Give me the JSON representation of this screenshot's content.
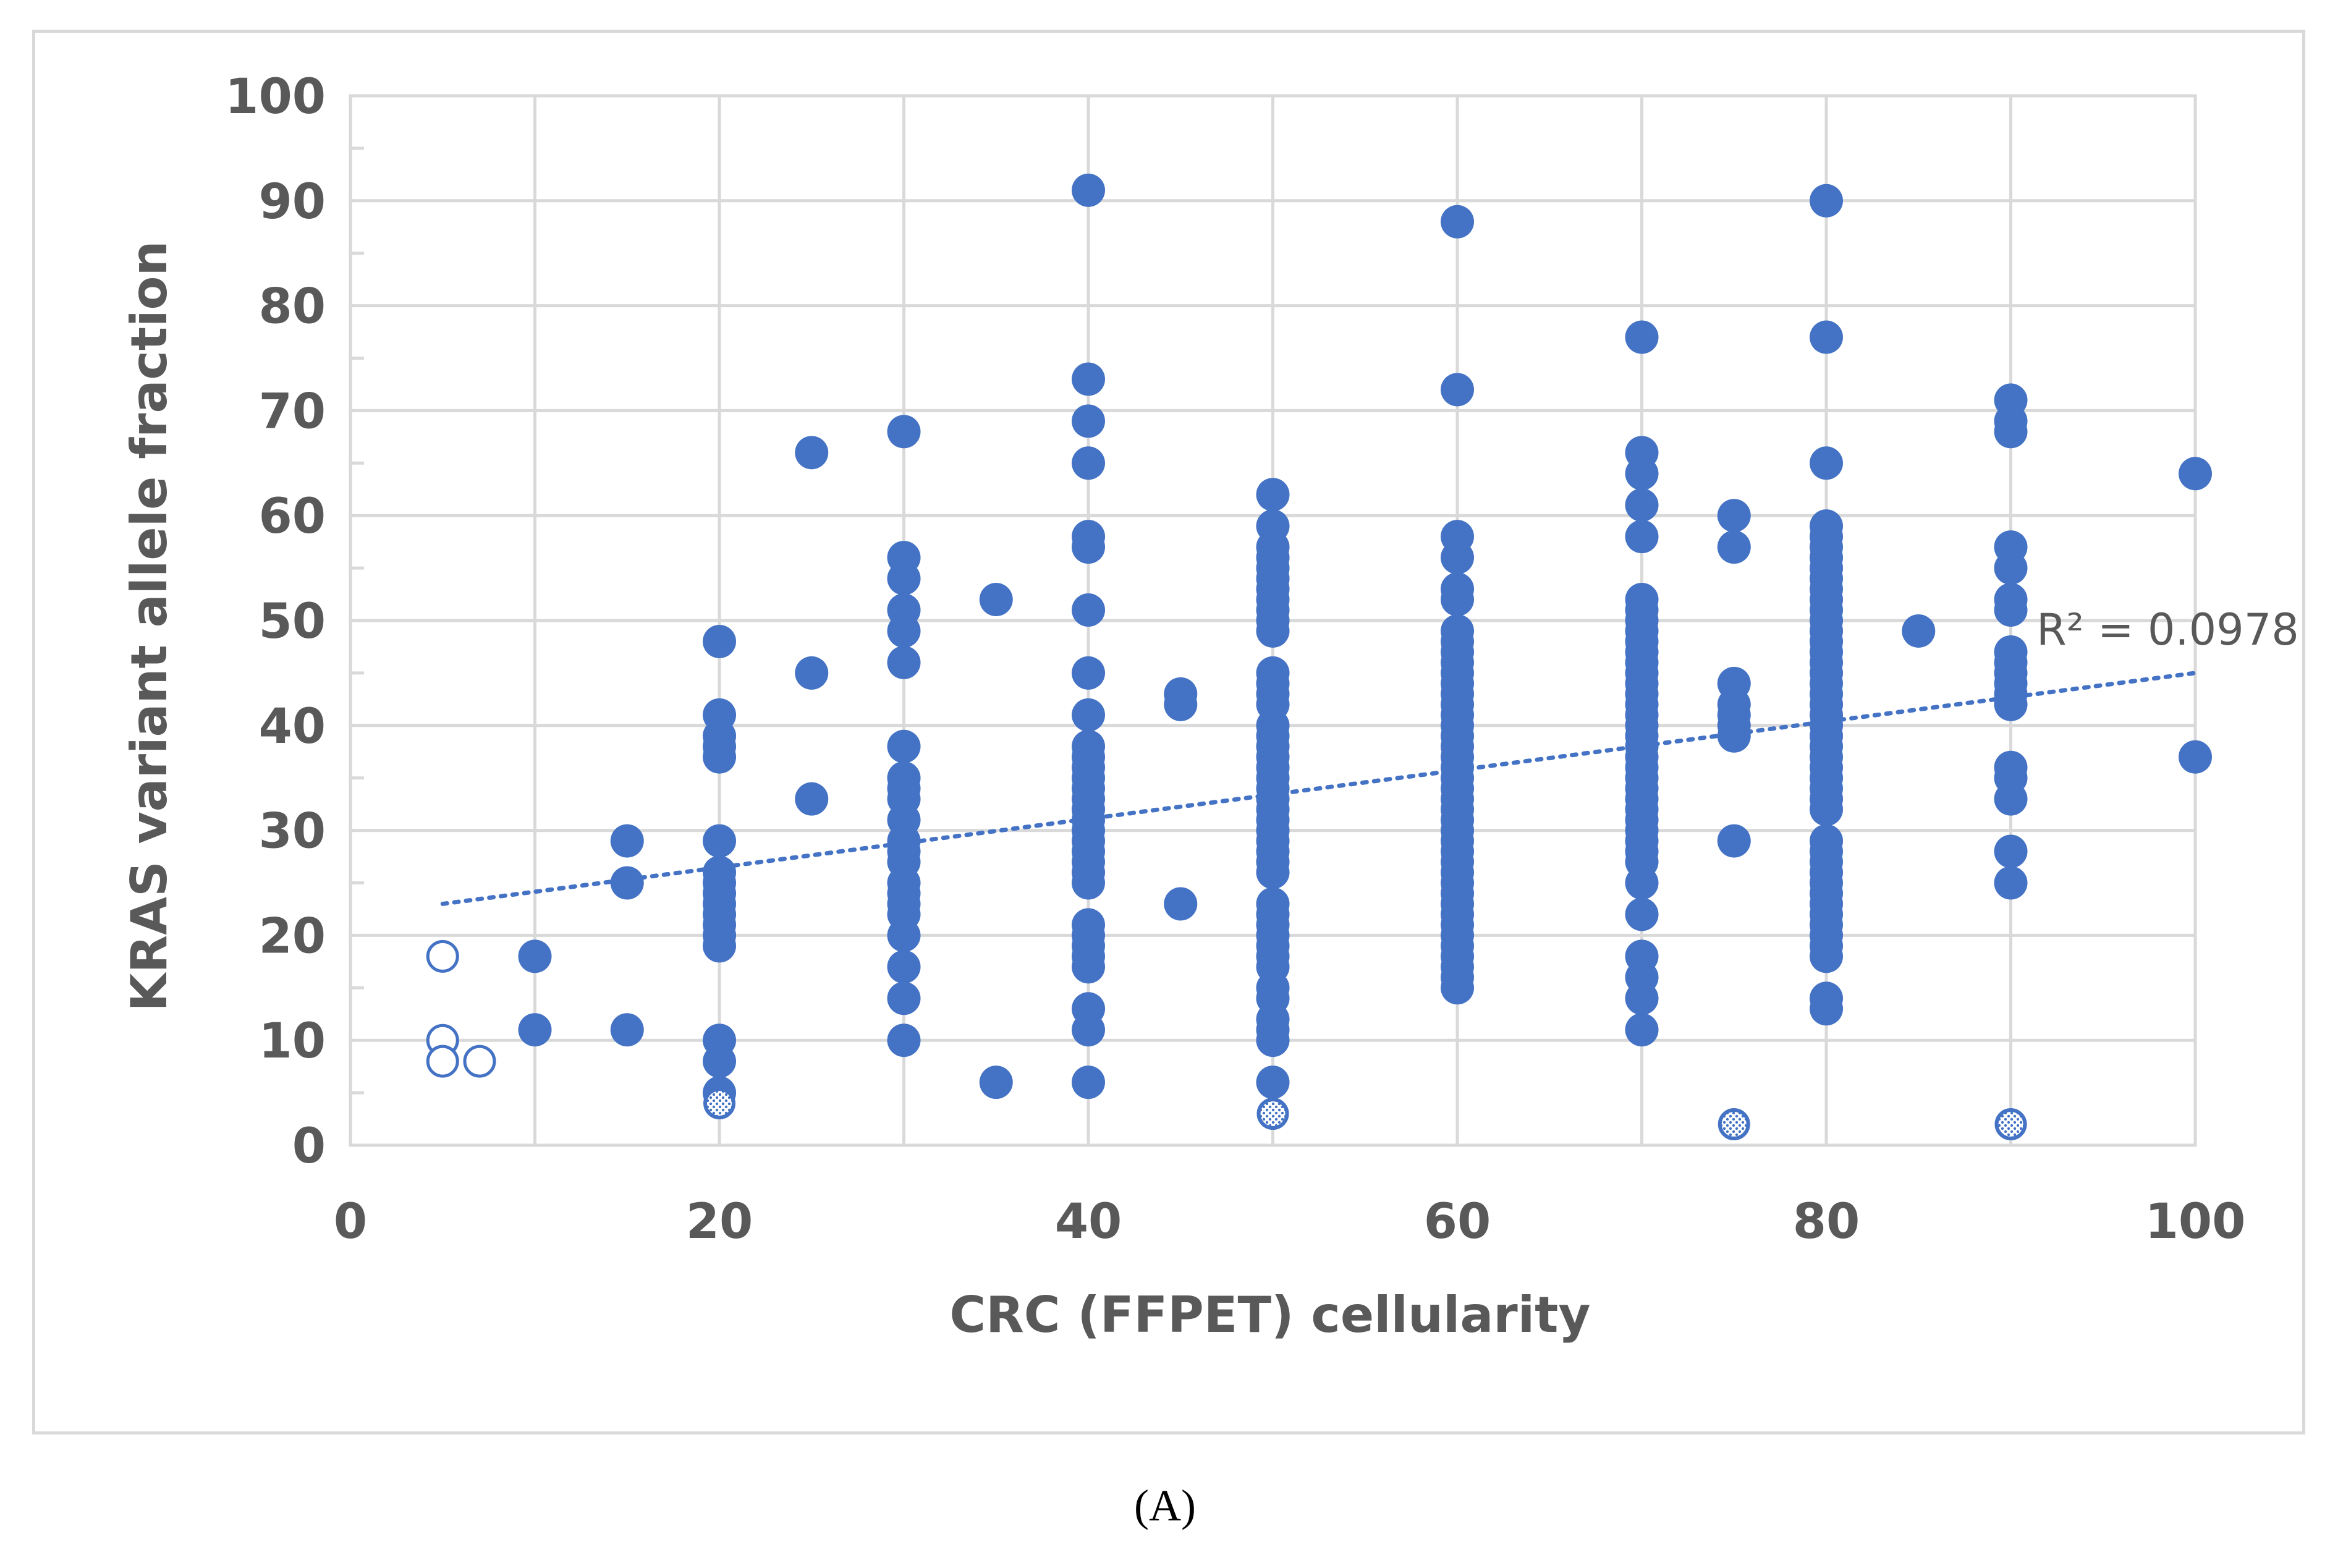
{
  "chart_data": {
    "type": "scatter",
    "title": "",
    "xlabel": "CRC (FFPET) cellularity",
    "ylabel": "KRAS variant allele fraction",
    "xlim": [
      0,
      100
    ],
    "ylim": [
      0,
      100
    ],
    "x_ticks": [
      "0",
      "20",
      "40",
      "60",
      "80",
      "100"
    ],
    "y_ticks": [
      "0",
      "10",
      "20",
      "30",
      "40",
      "50",
      "60",
      "70",
      "80",
      "90",
      "100"
    ],
    "grid": true,
    "colors": {
      "marker": "#4472c4",
      "grid": "#d9d9d9",
      "text": "#595959"
    },
    "trendline": {
      "type": "linear",
      "style": "dotted",
      "x": [
        5,
        100
      ],
      "y": [
        23,
        45
      ],
      "r2_label": "R² = 0.0978"
    },
    "series": [
      {
        "name": "filled",
        "style": "filled",
        "points": [
          [
            10,
            18
          ],
          [
            10,
            11
          ],
          [
            15,
            29
          ],
          [
            15,
            25
          ],
          [
            15,
            11
          ],
          [
            20,
            48
          ],
          [
            20,
            41
          ],
          [
            20,
            39
          ],
          [
            20,
            38
          ],
          [
            20,
            37
          ],
          [
            20,
            29
          ],
          [
            20,
            26
          ],
          [
            20,
            25
          ],
          [
            20,
            24
          ],
          [
            20,
            23
          ],
          [
            20,
            22
          ],
          [
            20,
            21
          ],
          [
            20,
            20
          ],
          [
            20,
            19
          ],
          [
            20,
            10
          ],
          [
            20,
            8
          ],
          [
            20,
            5
          ],
          [
            25,
            66
          ],
          [
            25,
            45
          ],
          [
            25,
            33
          ],
          [
            30,
            68
          ],
          [
            30,
            56
          ],
          [
            30,
            54
          ],
          [
            30,
            51
          ],
          [
            30,
            49
          ],
          [
            30,
            46
          ],
          [
            30,
            38
          ],
          [
            30,
            35
          ],
          [
            30,
            34
          ],
          [
            30,
            33
          ],
          [
            30,
            31
          ],
          [
            30,
            29
          ],
          [
            30,
            28
          ],
          [
            30,
            27
          ],
          [
            30,
            25
          ],
          [
            30,
            24
          ],
          [
            30,
            23
          ],
          [
            30,
            22
          ],
          [
            30,
            20
          ],
          [
            30,
            17
          ],
          [
            30,
            14
          ],
          [
            30,
            10
          ],
          [
            35,
            52
          ],
          [
            35,
            6
          ],
          [
            40,
            91
          ],
          [
            40,
            73
          ],
          [
            40,
            69
          ],
          [
            40,
            65
          ],
          [
            40,
            58
          ],
          [
            40,
            57
          ],
          [
            40,
            51
          ],
          [
            40,
            45
          ],
          [
            40,
            41
          ],
          [
            40,
            38
          ],
          [
            40,
            37
          ],
          [
            40,
            36
          ],
          [
            40,
            35
          ],
          [
            40,
            34
          ],
          [
            40,
            33
          ],
          [
            40,
            32
          ],
          [
            40,
            31
          ],
          [
            40,
            30
          ],
          [
            40,
            29
          ],
          [
            40,
            28
          ],
          [
            40,
            27
          ],
          [
            40,
            26
          ],
          [
            40,
            25
          ],
          [
            40,
            21
          ],
          [
            40,
            20
          ],
          [
            40,
            19
          ],
          [
            40,
            18
          ],
          [
            40,
            17
          ],
          [
            40,
            13
          ],
          [
            40,
            11
          ],
          [
            40,
            6
          ],
          [
            45,
            43
          ],
          [
            45,
            42
          ],
          [
            45,
            23
          ],
          [
            50,
            62
          ],
          [
            50,
            59
          ],
          [
            50,
            57
          ],
          [
            50,
            56
          ],
          [
            50,
            55
          ],
          [
            50,
            54
          ],
          [
            50,
            53
          ],
          [
            50,
            52
          ],
          [
            50,
            51
          ],
          [
            50,
            50
          ],
          [
            50,
            49
          ],
          [
            50,
            45
          ],
          [
            50,
            44
          ],
          [
            50,
            43
          ],
          [
            50,
            42
          ],
          [
            50,
            40
          ],
          [
            50,
            39
          ],
          [
            50,
            38
          ],
          [
            50,
            37
          ],
          [
            50,
            36
          ],
          [
            50,
            35
          ],
          [
            50,
            34
          ],
          [
            50,
            33
          ],
          [
            50,
            32
          ],
          [
            50,
            31
          ],
          [
            50,
            30
          ],
          [
            50,
            29
          ],
          [
            50,
            28
          ],
          [
            50,
            27
          ],
          [
            50,
            26
          ],
          [
            50,
            23
          ],
          [
            50,
            22
          ],
          [
            50,
            21
          ],
          [
            50,
            20
          ],
          [
            50,
            19
          ],
          [
            50,
            18
          ],
          [
            50,
            17
          ],
          [
            50,
            15
          ],
          [
            50,
            14
          ],
          [
            50,
            12
          ],
          [
            50,
            11
          ],
          [
            50,
            10
          ],
          [
            50,
            6
          ],
          [
            60,
            88
          ],
          [
            60,
            72
          ],
          [
            60,
            58
          ],
          [
            60,
            56
          ],
          [
            60,
            53
          ],
          [
            60,
            52
          ],
          [
            60,
            49
          ],
          [
            60,
            48
          ],
          [
            60,
            47
          ],
          [
            60,
            46
          ],
          [
            60,
            45
          ],
          [
            60,
            44
          ],
          [
            60,
            43
          ],
          [
            60,
            42
          ],
          [
            60,
            41
          ],
          [
            60,
            40
          ],
          [
            60,
            39
          ],
          [
            60,
            38
          ],
          [
            60,
            37
          ],
          [
            60,
            36
          ],
          [
            60,
            35
          ],
          [
            60,
            34
          ],
          [
            60,
            33
          ],
          [
            60,
            32
          ],
          [
            60,
            31
          ],
          [
            60,
            30
          ],
          [
            60,
            29
          ],
          [
            60,
            28
          ],
          [
            60,
            27
          ],
          [
            60,
            26
          ],
          [
            60,
            25
          ],
          [
            60,
            24
          ],
          [
            60,
            23
          ],
          [
            60,
            22
          ],
          [
            60,
            21
          ],
          [
            60,
            20
          ],
          [
            60,
            19
          ],
          [
            60,
            18
          ],
          [
            60,
            17
          ],
          [
            60,
            16
          ],
          [
            60,
            15
          ],
          [
            70,
            77
          ],
          [
            70,
            66
          ],
          [
            70,
            64
          ],
          [
            70,
            61
          ],
          [
            70,
            58
          ],
          [
            70,
            52
          ],
          [
            70,
            51
          ],
          [
            70,
            50
          ],
          [
            70,
            49
          ],
          [
            70,
            48
          ],
          [
            70,
            47
          ],
          [
            70,
            46
          ],
          [
            70,
            45
          ],
          [
            70,
            44
          ],
          [
            70,
            43
          ],
          [
            70,
            42
          ],
          [
            70,
            41
          ],
          [
            70,
            40
          ],
          [
            70,
            39
          ],
          [
            70,
            38
          ],
          [
            70,
            37
          ],
          [
            70,
            36
          ],
          [
            70,
            35
          ],
          [
            70,
            34
          ],
          [
            70,
            33
          ],
          [
            70,
            32
          ],
          [
            70,
            31
          ],
          [
            70,
            30
          ],
          [
            70,
            29
          ],
          [
            70,
            28
          ],
          [
            70,
            27
          ],
          [
            70,
            25
          ],
          [
            70,
            22
          ],
          [
            70,
            18
          ],
          [
            70,
            16
          ],
          [
            70,
            14
          ],
          [
            70,
            11
          ],
          [
            75,
            60
          ],
          [
            75,
            57
          ],
          [
            75,
            44
          ],
          [
            75,
            42
          ],
          [
            75,
            41
          ],
          [
            75,
            40
          ],
          [
            75,
            39
          ],
          [
            75,
            29
          ],
          [
            80,
            90
          ],
          [
            80,
            77
          ],
          [
            80,
            65
          ],
          [
            80,
            59
          ],
          [
            80,
            58
          ],
          [
            80,
            57
          ],
          [
            80,
            56
          ],
          [
            80,
            55
          ],
          [
            80,
            54
          ],
          [
            80,
            53
          ],
          [
            80,
            52
          ],
          [
            80,
            51
          ],
          [
            80,
            50
          ],
          [
            80,
            49
          ],
          [
            80,
            48
          ],
          [
            80,
            47
          ],
          [
            80,
            46
          ],
          [
            80,
            45
          ],
          [
            80,
            44
          ],
          [
            80,
            43
          ],
          [
            80,
            42
          ],
          [
            80,
            41
          ],
          [
            80,
            40
          ],
          [
            80,
            39
          ],
          [
            80,
            38
          ],
          [
            80,
            37
          ],
          [
            80,
            36
          ],
          [
            80,
            35
          ],
          [
            80,
            34
          ],
          [
            80,
            33
          ],
          [
            80,
            32
          ],
          [
            80,
            29
          ],
          [
            80,
            28
          ],
          [
            80,
            27
          ],
          [
            80,
            26
          ],
          [
            80,
            25
          ],
          [
            80,
            24
          ],
          [
            80,
            23
          ],
          [
            80,
            22
          ],
          [
            80,
            21
          ],
          [
            80,
            20
          ],
          [
            80,
            19
          ],
          [
            80,
            18
          ],
          [
            80,
            14
          ],
          [
            80,
            13
          ],
          [
            85,
            49
          ],
          [
            90,
            71
          ],
          [
            90,
            69
          ],
          [
            90,
            68
          ],
          [
            90,
            57
          ],
          [
            90,
            55
          ],
          [
            90,
            52
          ],
          [
            90,
            51
          ],
          [
            90,
            47
          ],
          [
            90,
            46
          ],
          [
            90,
            45
          ],
          [
            90,
            44
          ],
          [
            90,
            43
          ],
          [
            90,
            42
          ],
          [
            90,
            36
          ],
          [
            90,
            35
          ],
          [
            90,
            33
          ],
          [
            90,
            28
          ],
          [
            90,
            25
          ],
          [
            100,
            64
          ],
          [
            100,
            37
          ]
        ]
      },
      {
        "name": "hollow",
        "style": "open",
        "points": [
          [
            5,
            18
          ],
          [
            5,
            10
          ],
          [
            5,
            8
          ],
          [
            7,
            8
          ]
        ]
      },
      {
        "name": "patterned",
        "style": "dotted-fill",
        "points": [
          [
            20,
            4
          ],
          [
            50,
            3
          ],
          [
            75,
            2
          ],
          [
            90,
            2
          ]
        ]
      }
    ]
  },
  "panel_label": "(A)"
}
